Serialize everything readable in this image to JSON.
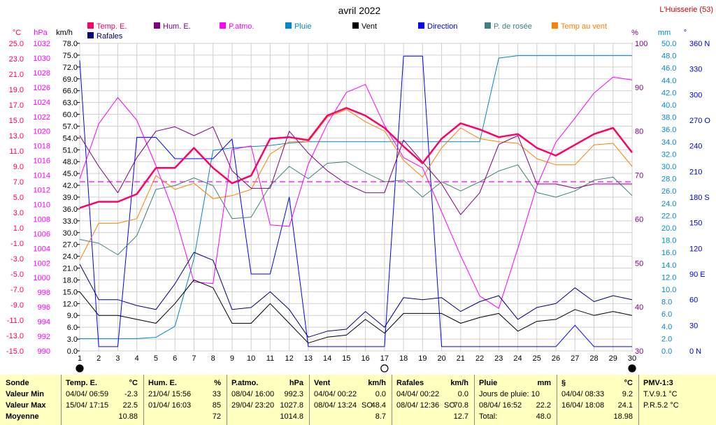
{
  "header": {
    "title": "avril 2022",
    "station": "L'Huisserie (53)"
  },
  "colors": {
    "temp": "#ff0066",
    "hum": "#800080",
    "patmo": "#ff00ff",
    "pluie": "#0088cc",
    "vent": "#000000",
    "direction": "#0000ff",
    "rosee": "#408080",
    "tempvent": "#ff8000",
    "rafales": "#000080",
    "axis_c": "#ff0066",
    "axis_hpa": "#ff00ff",
    "axis_pct": "#800080",
    "axis_mm": "#0088cc",
    "axis_deg": "#0000cc"
  },
  "chart_data": {
    "type": "line",
    "title": "avril 2022",
    "x": [
      1,
      2,
      3,
      4,
      5,
      6,
      7,
      8,
      9,
      10,
      11,
      12,
      13,
      14,
      15,
      16,
      17,
      18,
      19,
      20,
      21,
      22,
      23,
      24,
      25,
      26,
      27,
      28,
      29,
      30
    ],
    "axes": {
      "celsius": {
        "unit": "°C",
        "min": -15,
        "max": 25,
        "ticks": [
          "25.0",
          "23.0",
          "21.0",
          "19.0",
          "17.0",
          "15.0",
          "13.0",
          "11.0",
          "9.0",
          "7.0",
          "5.0",
          "3.0",
          "1.0",
          "-1.0",
          "-3.0",
          "-5.0",
          "-7.0",
          "-9.0",
          "-11.0",
          "-13.0",
          "-15.0"
        ]
      },
      "hpa": {
        "unit": "hPa",
        "min": 990,
        "max": 1032,
        "ticks": [
          "1032",
          "1030",
          "1028",
          "1026",
          "1024",
          "1022",
          "1020",
          "1018",
          "1016",
          "1014",
          "1012",
          "1010",
          "1008",
          "1006",
          "1004",
          "1002",
          "1000",
          "998",
          "996",
          "994",
          "992",
          "990"
        ]
      },
      "kmh": {
        "unit": "km/h",
        "min": 0,
        "max": 78,
        "ticks": [
          "78.0",
          "75.0",
          "72.0",
          "69.0",
          "66.0",
          "63.0",
          "60.0",
          "57.0",
          "54.0",
          "51.0",
          "48.0",
          "45.0",
          "42.0",
          "39.0",
          "36.0",
          "33.0",
          "30.0",
          "27.0",
          "24.0",
          "21.0",
          "18.0",
          "15.0",
          "12.0",
          "9.0",
          "6.0",
          "3.0",
          "0.0"
        ]
      },
      "pct": {
        "unit": "%",
        "min": 30,
        "max": 100,
        "ticks": [
          "100",
          "90",
          "80",
          "70",
          "60",
          "50",
          "40",
          "30"
        ]
      },
      "mm": {
        "unit": "mm",
        "min": 0,
        "max": 50,
        "ticks": [
          "50.0",
          "48.0",
          "46.0",
          "44.0",
          "42.0",
          "40.0",
          "38.0",
          "36.0",
          "34.0",
          "32.0",
          "30.0",
          "28.0",
          "26.0",
          "24.0",
          "22.0",
          "20.0",
          "18.0",
          "16.0",
          "14.0",
          "12.0",
          "10.0",
          "8.0",
          "6.0",
          "4.0",
          "2.0",
          "0.0"
        ]
      },
      "deg": {
        "unit": "°",
        "min": 0,
        "max": 360,
        "ticks": [
          "360 N",
          "330",
          "300",
          "270 O",
          "240",
          "210",
          "180 S",
          "150",
          "120",
          "90 E",
          "60",
          "30",
          "0 N"
        ]
      }
    },
    "reference_line": {
      "axis": "celsius",
      "value": 7.0
    },
    "series": [
      {
        "key": "temp",
        "name": "Temp. E.",
        "axis": "celsius",
        "width": 2.5,
        "values": [
          3.6,
          4.4,
          4.4,
          5.4,
          8.8,
          8.8,
          11.4,
          8.8,
          6.8,
          7.8,
          12.6,
          12.8,
          12.4,
          15.6,
          16.6,
          15.6,
          14.0,
          11.6,
          9.4,
          12.6,
          14.6,
          13.8,
          12.8,
          13.2,
          11.4,
          10.4,
          11.8,
          13.2,
          14.0,
          10.8
        ]
      },
      {
        "key": "hum",
        "name": "Hum. E.",
        "axis": "pct",
        "values": [
          79,
          72,
          66,
          74,
          80,
          81,
          79,
          81,
          71,
          67,
          67,
          80,
          75,
          71,
          68,
          66,
          66,
          78,
          73,
          68,
          61,
          66,
          77,
          79,
          68,
          68,
          67,
          68,
          68,
          68
        ]
      },
      {
        "key": "patmo",
        "name": "P.atmo.",
        "axis": "hpa",
        "values": [
          1013.5,
          1021.0,
          1024.6,
          1021.5,
          1015.3,
          1008.5,
          999.4,
          999.2,
          1017.5,
          1018.0,
          1007.2,
          1007.0,
          1015.5,
          1021.0,
          1025.3,
          1026.4,
          1020.8,
          1016.4,
          1015.0,
          1009.0,
          1003.0,
          997.5,
          995.8,
          1004.0,
          1012.5,
          1018.5,
          1021.8,
          1025.2,
          1027.4,
          1027.0
        ]
      },
      {
        "key": "rosee",
        "name": "P. de rosée",
        "axis": "celsius",
        "values": [
          -0.5,
          -1.0,
          -2.5,
          0.0,
          6.0,
          6.5,
          7.5,
          6.5,
          2.2,
          2.4,
          6.5,
          9.0,
          7.4,
          9.4,
          9.6,
          8.2,
          7.0,
          7.2,
          5.0,
          7.0,
          5.8,
          7.0,
          8.4,
          9.2,
          5.6,
          5.0,
          5.8,
          7.2,
          7.6,
          5.2
        ]
      },
      {
        "key": "tempvent",
        "name": "Temp au vent",
        "axis": "celsius",
        "values": [
          -3.2,
          1.6,
          1.6,
          2.2,
          7.8,
          6.0,
          6.8,
          4.8,
          5.2,
          6.0,
          10.6,
          12.2,
          12.2,
          15.4,
          16.4,
          14.8,
          13.6,
          9.8,
          7.6,
          11.4,
          14.0,
          12.6,
          12.2,
          12.0,
          10.0,
          9.2,
          9.2,
          11.8,
          12.0,
          9.0
        ]
      },
      {
        "key": "vent",
        "name": "Vent",
        "axis": "kmh",
        "values": [
          15.0,
          9.0,
          9.0,
          8.0,
          7.0,
          12.0,
          18.0,
          16.0,
          7.0,
          7.0,
          12.0,
          7.0,
          2.0,
          3.5,
          4.0,
          8.0,
          4.5,
          9.5,
          9.5,
          9.5,
          7.0,
          8.5,
          9.5,
          5.0,
          7.5,
          8.0,
          10.5,
          9.0,
          10.0,
          9.0
        ]
      },
      {
        "key": "rafales",
        "name": "Rafales",
        "axis": "kmh",
        "values": [
          22.0,
          13.0,
          13.0,
          11.5,
          10.5,
          17.0,
          25.0,
          23.0,
          10.5,
          11.0,
          15.0,
          10.5,
          3.5,
          5.0,
          5.5,
          10.0,
          6.0,
          13.5,
          13.0,
          13.5,
          10.0,
          12.5,
          14.0,
          8.0,
          11.0,
          12.0,
          16.0,
          12.5,
          14.0,
          13.0
        ]
      },
      {
        "key": "direction",
        "name": "Direction",
        "axis": "deg",
        "values": [
          340,
          5,
          5,
          250,
          250,
          225,
          225,
          225,
          248,
          90,
          90,
          180,
          5,
          5,
          5,
          5,
          5,
          345,
          345,
          5,
          5,
          5,
          5,
          5,
          5,
          5,
          30,
          5,
          5,
          5
        ]
      },
      {
        "key": "pluie",
        "name": "Pluie",
        "axis": "mm",
        "values": [
          2.0,
          2.0,
          2.0,
          2.0,
          2.2,
          4.0,
          15.0,
          32.6,
          33.0,
          33.2,
          33.4,
          33.8,
          34.0,
          34.0,
          34.0,
          34.0,
          34.0,
          34.0,
          34.0,
          34.0,
          34.0,
          34.0,
          47.6,
          48.0,
          48.0,
          48.0,
          48.0,
          48.0,
          48.0,
          48.0
        ]
      }
    ],
    "moon_markers": [
      {
        "x": 1,
        "phase": "new"
      },
      {
        "x": 17,
        "phase": "full"
      },
      {
        "x": 30,
        "phase": "new"
      }
    ]
  },
  "summary": {
    "row_labels": [
      "Sonde",
      "Valeur Min",
      "Valeur Max",
      "Moyenne"
    ],
    "columns": [
      {
        "title": "Temp. E.",
        "unit": "°C",
        "min_date": "04/04/ 06:59",
        "min_val": "-2.3",
        "max_date": "15/04/ 17:15",
        "max_val": "22.5",
        "avg": "10.88"
      },
      {
        "title": "Hum. E.",
        "unit": "%",
        "min_date": "21/04/ 15:56",
        "min_val": "33",
        "max_date": "01/04/ 16:03",
        "max_val": "85",
        "avg": "72"
      },
      {
        "title": "P.atmo.",
        "unit": "hPa",
        "min_date": "08/04/ 16:00",
        "min_val": "992.3",
        "max_date": "29/04/ 23:20",
        "max_val": "1027.8",
        "avg": "1014.8"
      },
      {
        "title": "Vent",
        "unit": "km/h",
        "min_date": "04/04/ 00:22",
        "min_val": "0.0",
        "max_date": "08/04/ 13:24",
        "max_dir": "SO",
        "max_val": "48.4",
        "avg": "8.7"
      },
      {
        "title": "Rafales",
        "unit": "km/h",
        "min_date": "04/04/ 00:22",
        "min_val": "0.0",
        "max_date": "08/04/ 12:36",
        "max_dir": "SO",
        "max_val": "70.8",
        "avg": "12.7"
      },
      {
        "title": "Pluie",
        "unit": "mm",
        "min_date": "Jours de pluie: 10",
        "min_val": "",
        "max_date": "08/04/ 16:52",
        "max_val": "22.2",
        "avg_label": "Total:",
        "avg": "48.0"
      },
      {
        "title": "§",
        "unit": "°C",
        "min_date": "04/04/ 08:33",
        "min_val": "9.2",
        "max_date": "16/04/ 18:08",
        "max_val": "24.1",
        "avg": "18.98"
      }
    ],
    "pmv": {
      "title": "PMV-1:3",
      "tv": "T.V.9.1 °C",
      "pr": "P.R.5.2 °C"
    }
  }
}
